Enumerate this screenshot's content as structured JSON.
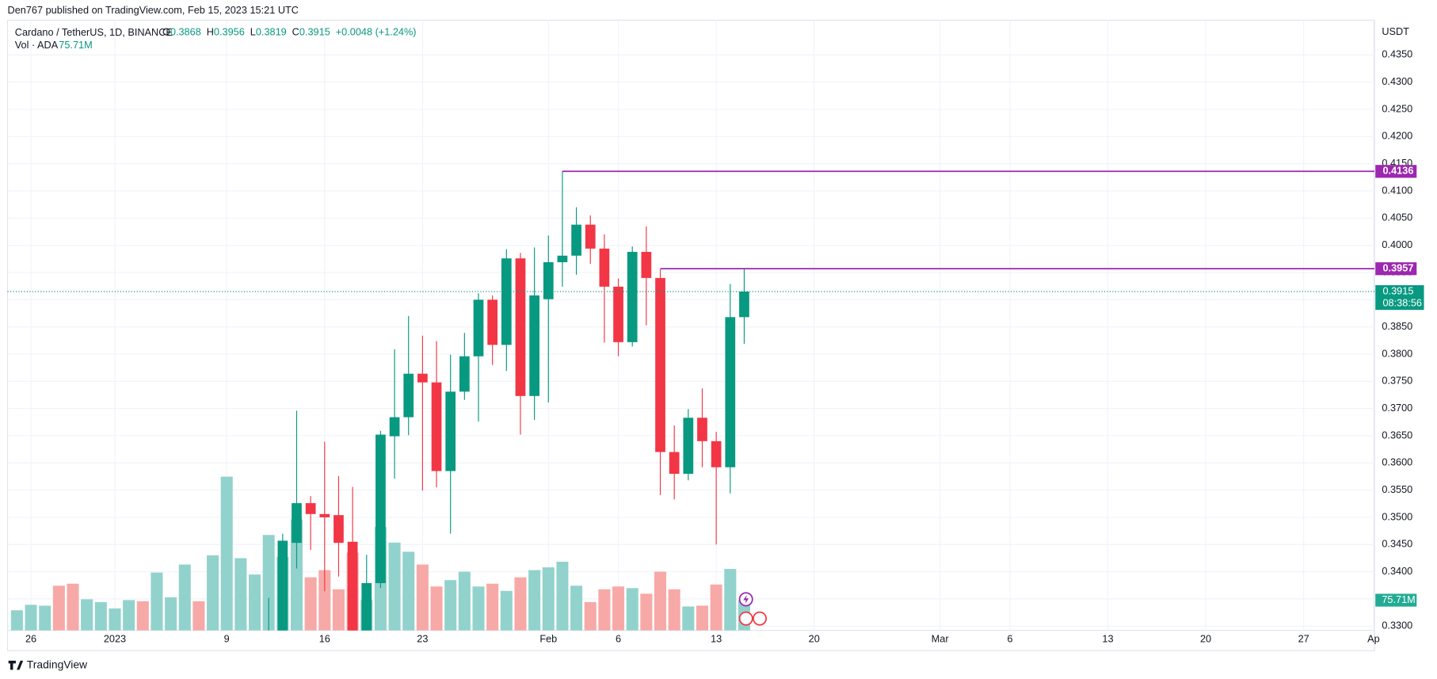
{
  "header": "Den767 published on TradingView.com, Feb 15, 2023 15:21 UTC",
  "footer": "TradingView",
  "chart_data": {
    "type": "candlestick",
    "symbol": "Cardano / TetherUS, 1D, BINANCE",
    "legend_ohlc": [
      {
        "label": "O",
        "value": "0.3868"
      },
      {
        "label": "H",
        "value": "0.3956"
      },
      {
        "label": "L",
        "value": "0.3819"
      },
      {
        "label": "C",
        "value": "0.3915"
      }
    ],
    "change": "+0.0048 (+1.24%)",
    "volume_title": "Vol · ADA",
    "volume_legend": "75.71M",
    "axis_unit": "USDT",
    "up_color": "#089981",
    "down_color": "#f23645",
    "level_color": "#9c27b0",
    "x": [
      "2023-01-12",
      "2023-01-13",
      "2023-01-14",
      "2023-01-15",
      "2023-01-16",
      "2023-01-17",
      "2023-01-18",
      "2023-01-19",
      "2023-01-20",
      "2023-01-21",
      "2023-01-22",
      "2023-01-23",
      "2023-01-24",
      "2023-01-25",
      "2023-01-26",
      "2023-01-27",
      "2023-01-28",
      "2023-01-29",
      "2023-01-30",
      "2023-01-31",
      "2023-02-01",
      "2023-02-02",
      "2023-02-03",
      "2023-02-04",
      "2023-02-05",
      "2023-02-06",
      "2023-02-07",
      "2023-02-08",
      "2023-02-09",
      "2023-02-10",
      "2023-02-11",
      "2023-02-12",
      "2023-02-13",
      "2023-02-14",
      "2023-02-15"
    ],
    "open": [
      0.3185,
      0.325,
      0.3453,
      0.3526,
      0.3506,
      0.3504,
      0.3455,
      0.3275,
      0.3379,
      0.3649,
      0.3684,
      0.3764,
      0.3748,
      0.3585,
      0.3731,
      0.3796,
      0.39,
      0.3817,
      0.3976,
      0.3723,
      0.3901,
      0.3969,
      0.3981,
      0.4038,
      0.3994,
      0.3924,
      0.3822,
      0.3988,
      0.394,
      0.362,
      0.358,
      0.3683,
      0.364,
      0.3592,
      0.3868
    ],
    "high": [
      0.3352,
      0.347,
      0.3696,
      0.3539,
      0.3639,
      0.3576,
      0.3556,
      0.3431,
      0.3659,
      0.3809,
      0.387,
      0.3834,
      0.3824,
      0.3799,
      0.3839,
      0.3912,
      0.3908,
      0.3993,
      0.3986,
      0.3996,
      0.4018,
      0.4136,
      0.407,
      0.4055,
      0.402,
      0.3939,
      0.3998,
      0.4035,
      0.3956,
      0.3669,
      0.3699,
      0.3737,
      0.3657,
      0.3929,
      0.3956
    ],
    "low": [
      0.315,
      0.322,
      0.3406,
      0.344,
      0.3364,
      0.3391,
      0.324,
      0.32,
      0.337,
      0.3571,
      0.3651,
      0.3549,
      0.3555,
      0.347,
      0.3716,
      0.3676,
      0.378,
      0.3769,
      0.3652,
      0.3679,
      0.3711,
      0.3924,
      0.3946,
      0.3966,
      0.3821,
      0.3796,
      0.3814,
      0.3853,
      0.3541,
      0.3533,
      0.3568,
      0.3592,
      0.345,
      0.3544,
      0.3819
    ],
    "close": [
      0.325,
      0.3457,
      0.3526,
      0.3506,
      0.35,
      0.3453,
      0.327,
      0.3379,
      0.3652,
      0.3684,
      0.3764,
      0.3748,
      0.3585,
      0.3731,
      0.3796,
      0.39,
      0.3817,
      0.3976,
      0.3723,
      0.3908,
      0.3969,
      0.3981,
      0.4038,
      0.3994,
      0.3924,
      0.3822,
      0.3988,
      0.394,
      0.362,
      0.358,
      0.3683,
      0.364,
      0.3592,
      0.3868,
      0.3915
    ],
    "volume": {
      "x": [
        "2022-12-25",
        "2022-12-26",
        "2022-12-27",
        "2022-12-28",
        "2022-12-29",
        "2022-12-30",
        "2022-12-31",
        "2023-01-01",
        "2023-01-02",
        "2023-01-03",
        "2023-01-04",
        "2023-01-05",
        "2023-01-06",
        "2023-01-07",
        "2023-01-08",
        "2023-01-09",
        "2023-01-10",
        "2023-01-11",
        "2023-01-12",
        "2023-01-13",
        "2023-01-14",
        "2023-01-15",
        "2023-01-16",
        "2023-01-17",
        "2023-01-18",
        "2023-01-19",
        "2023-01-20",
        "2023-01-21",
        "2023-01-22",
        "2023-01-23",
        "2023-01-24",
        "2023-01-25",
        "2023-01-26",
        "2023-01-27",
        "2023-01-28",
        "2023-01-29",
        "2023-01-30",
        "2023-01-31",
        "2023-02-01",
        "2023-02-02",
        "2023-02-03",
        "2023-02-04",
        "2023-02-05",
        "2023-02-06",
        "2023-02-07",
        "2023-02-08",
        "2023-02-09",
        "2023-02-10",
        "2023-02-11",
        "2023-02-12",
        "2023-02-13",
        "2023-02-14",
        "2023-02-15"
      ],
      "values": [
        50.5,
        64.2,
        62,
        112,
        117,
        78,
        71,
        55,
        76,
        73,
        145,
        83,
        165,
        73,
        188,
        385,
        181,
        140,
        239,
        184,
        278,
        133,
        151,
        103,
        195,
        76,
        259,
        220,
        197,
        165,
        110,
        126,
        147,
        110,
        117,
        99,
        133,
        151,
        158,
        172,
        112,
        71,
        103,
        110,
        106,
        92,
        147,
        103,
        60,
        62,
        115,
        154,
        75.71
      ],
      "colors": [
        "#92d2cc",
        "#92d2cc",
        "#92d2cc",
        "#f7a9a7",
        "#f7a9a7",
        "#92d2cc",
        "#92d2cc",
        "#92d2cc",
        "#92d2cc",
        "#f7a9a7",
        "#92d2cc",
        "#92d2cc",
        "#92d2cc",
        "#f7a9a7",
        "#92d2cc",
        "#92d2cc",
        "#92d2cc",
        "#92d2cc",
        "#92d2cc",
        "#92d2cc",
        "#92d2cc",
        "#f7a9a7",
        "#f7a9a7",
        "#f7a9a7",
        "#f7a9a7",
        "#92d2cc",
        "#92d2cc",
        "#92d2cc",
        "#92d2cc",
        "#f7a9a7",
        "#f7a9a7",
        "#92d2cc",
        "#92d2cc",
        "#92d2cc",
        "#f7a9a7",
        "#92d2cc",
        "#f7a9a7",
        "#92d2cc",
        "#92d2cc",
        "#92d2cc",
        "#92d2cc",
        "#f7a9a7",
        "#f7a9a7",
        "#f7a9a7",
        "#92d2cc",
        "#f7a9a7",
        "#f7a9a7",
        "#f7a9a7",
        "#92d2cc",
        "#f7a9a7",
        "#f7a9a7",
        "#92d2cc",
        "#92d2cc"
      ],
      "ylim": [
        0,
        1528
      ],
      "label": "75.71M"
    },
    "levels": [
      {
        "value": 0.4136,
        "start": "2023-02-02"
      },
      {
        "value": 0.3957,
        "start": "2023-02-09"
      }
    ],
    "last_price": 0.3915,
    "countdown": "08:38:56",
    "xlim": [
      "2022-12-24",
      "2023-04-01"
    ],
    "xticks": [
      {
        "value": "2022-12-26",
        "label": "26"
      },
      {
        "value": "2023-01-01",
        "label": "2023"
      },
      {
        "value": "2023-01-09",
        "label": "9"
      },
      {
        "value": "2023-01-16",
        "label": "16"
      },
      {
        "value": "2023-01-23",
        "label": "23"
      },
      {
        "value": "2023-02-01",
        "label": "Feb"
      },
      {
        "value": "2023-02-06",
        "label": "6"
      },
      {
        "value": "2023-02-13",
        "label": "13"
      },
      {
        "value": "2023-02-20",
        "label": "20"
      },
      {
        "value": "2023-03-01",
        "label": "Mar"
      },
      {
        "value": "2023-03-06",
        "label": "6"
      },
      {
        "value": "2023-03-13",
        "label": "13"
      },
      {
        "value": "2023-03-20",
        "label": "20"
      },
      {
        "value": "2023-03-27",
        "label": "27"
      },
      {
        "value": "2023-04-01",
        "label": "Ap"
      }
    ],
    "ylim": [
      0.3292,
      0.4414
    ],
    "yticks": [
      {
        "value": 0.33,
        "label": "0.3300"
      },
      {
        "value": 0.335,
        "label": "0.3350"
      },
      {
        "value": 0.34,
        "label": "0.3400"
      },
      {
        "value": 0.345,
        "label": "0.3450"
      },
      {
        "value": 0.35,
        "label": "0.3500"
      },
      {
        "value": 0.355,
        "label": "0.3550"
      },
      {
        "value": 0.36,
        "label": "0.3600"
      },
      {
        "value": 0.365,
        "label": "0.3650"
      },
      {
        "value": 0.37,
        "label": "0.3700"
      },
      {
        "value": 0.375,
        "label": "0.3750"
      },
      {
        "value": 0.38,
        "label": "0.3800"
      },
      {
        "value": 0.385,
        "label": "0.3850"
      },
      {
        "value": 0.39,
        "label": "0.3900"
      },
      {
        "value": 0.395,
        "label": "0.3950"
      },
      {
        "value": 0.4,
        "label": "0.4000"
      },
      {
        "value": 0.405,
        "label": "0.4050"
      },
      {
        "value": 0.41,
        "label": "0.4100"
      },
      {
        "value": 0.415,
        "label": "0.4150"
      },
      {
        "value": 0.42,
        "label": "0.4200"
      },
      {
        "value": 0.425,
        "label": "0.4250"
      },
      {
        "value": 0.43,
        "label": "0.4300"
      },
      {
        "value": 0.435,
        "label": "0.4350"
      }
    ],
    "grid": true
  }
}
